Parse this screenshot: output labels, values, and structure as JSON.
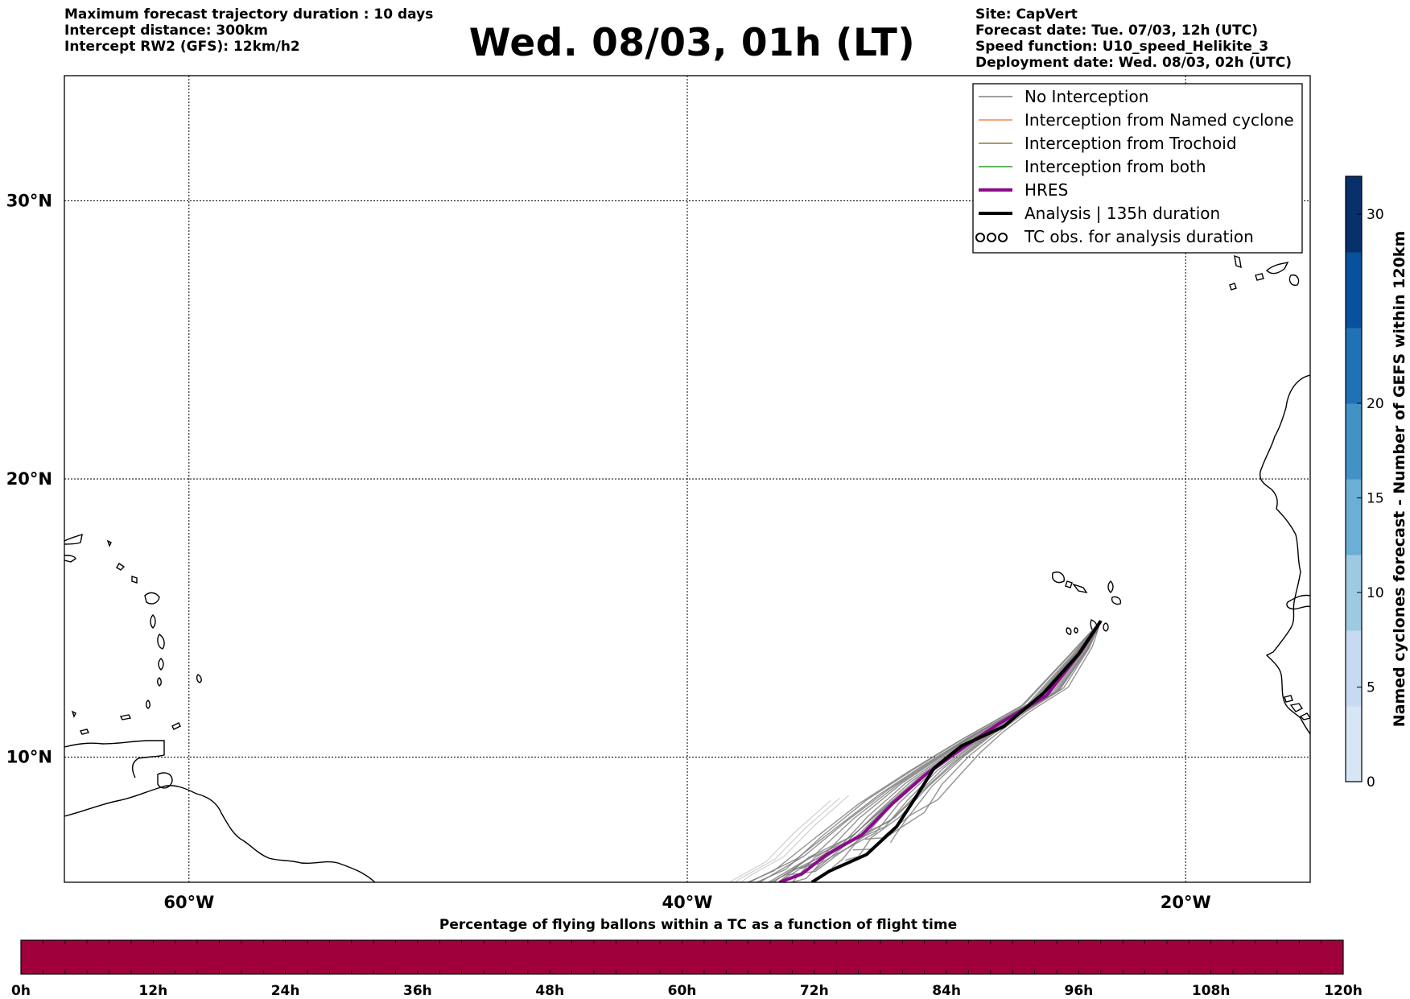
{
  "header": {
    "left_lines": [
      "Maximum forecast trajectory duration : 10 days",
      "Intercept distance: 300km",
      "Intercept RW2 (GFS):  12km/h2"
    ],
    "title": "Wed. 08/03, 01h (LT)",
    "right_lines": [
      "Site: CapVert",
      "Forecast date: Tue. 07/03, 12h (UTC)",
      "Speed function: U10_speed_Helikite_3",
      "Deployment date: Wed. 08/03, 02h (UTC)"
    ]
  },
  "map": {
    "lon_range": [
      -65,
      -15
    ],
    "lat_range": [
      5.5,
      34.5
    ],
    "lat_ticks": [
      {
        "value": 30,
        "label": "30°N"
      },
      {
        "value": 20,
        "label": "20°N"
      },
      {
        "value": 10,
        "label": "10°N"
      }
    ],
    "lon_ticks": [
      {
        "value": -60,
        "label": "60°W"
      },
      {
        "value": -40,
        "label": "40°W"
      },
      {
        "value": -20,
        "label": "20°W"
      }
    ],
    "gridlines": "dotted",
    "deployment_site": {
      "name": "CapVert",
      "lon": -23.5,
      "lat": 14.9
    },
    "colors": {
      "no_interception": "#808080",
      "named_cyclone": "#ff7f50",
      "trochoid": "#8b7d3a",
      "both": "#2ca02c",
      "hres": "#8b0a8b",
      "analysis": "#000000"
    },
    "hres_track": [
      [
        -23.4,
        14.9
      ],
      [
        -24.2,
        13.8
      ],
      [
        -25.6,
        12.2
      ],
      [
        -27.5,
        11.2
      ],
      [
        -29.0,
        10.3
      ],
      [
        -30.4,
        9.4
      ],
      [
        -31.8,
        8.3
      ],
      [
        -33.0,
        7.2
      ],
      [
        -34.4,
        6.5
      ],
      [
        -35.4,
        5.8
      ],
      [
        -36.3,
        5.5
      ]
    ],
    "analysis_track": [
      [
        -23.4,
        14.9
      ],
      [
        -24.3,
        13.7
      ],
      [
        -25.7,
        12.3
      ],
      [
        -27.3,
        11.1
      ],
      [
        -29.0,
        10.4
      ],
      [
        -30.1,
        9.6
      ],
      [
        -30.8,
        8.6
      ],
      [
        -31.6,
        7.5
      ],
      [
        -32.8,
        6.5
      ],
      [
        -34.3,
        5.9
      ],
      [
        -35.0,
        5.5
      ]
    ],
    "legend": {
      "items": [
        {
          "label": "No Interception",
          "style": "no_interception"
        },
        {
          "label": "Interception from Named cyclone",
          "style": "named_cyclone"
        },
        {
          "label": "Interception from Trochoid",
          "style": "trochoid"
        },
        {
          "label": "Interception from both",
          "style": "both"
        },
        {
          "label": "HRES",
          "style": "hres"
        },
        {
          "label": "Analysis | 135h duration",
          "style": "analysis"
        },
        {
          "label": "TC obs. for analysis duration",
          "style": "tc_obs"
        }
      ],
      "placement": "top-right"
    }
  },
  "right_colorbar": {
    "label": "Named cyclones forecast - Number of GEFS within 120km",
    "min": 0,
    "max": 32,
    "ticks": [
      0,
      5,
      10,
      15,
      20,
      30
    ],
    "palette": [
      "#d6e6f4",
      "#c6dbef",
      "#9ecae1",
      "#6baed6",
      "#4292c6",
      "#2171b5",
      "#08519c",
      "#08306b"
    ]
  },
  "bottom_colorbar": {
    "caption": "Percentage of flying ballons within a TC as a function of flight time",
    "color": "#a0003c",
    "ticks": [
      "0h",
      "12h",
      "24h",
      "36h",
      "48h",
      "60h",
      "72h",
      "84h",
      "96h",
      "108h",
      "120h"
    ],
    "percent_values": [
      0,
      0,
      0,
      0,
      0,
      0,
      0,
      0,
      0,
      0,
      0
    ]
  }
}
